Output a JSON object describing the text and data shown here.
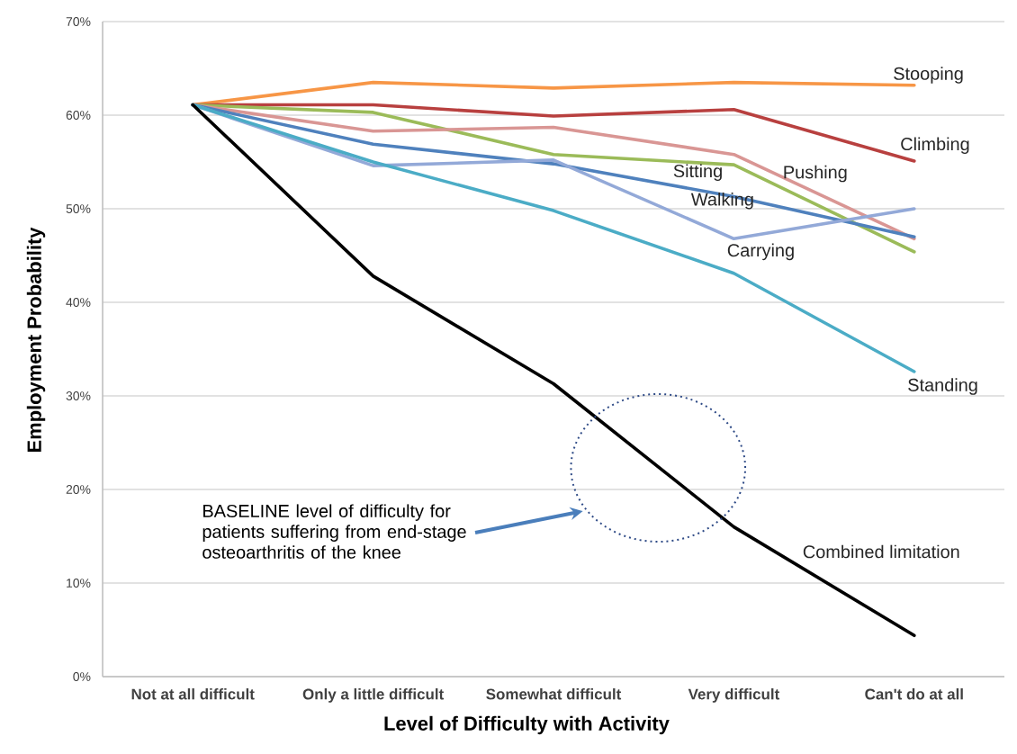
{
  "chart_data": {
    "type": "line",
    "xlabel": "Level of Difficulty with Activity",
    "ylabel": "Employment Probability",
    "categories": [
      "Not at all difficult",
      "Only a little difficult",
      "Somewhat difficult",
      "Very difficult",
      "Can't do at all"
    ],
    "series": [
      {
        "name": "Stooping",
        "color": "#f79646",
        "values": [
          61.1,
          63.5,
          62.9,
          63.5,
          63.2
        ]
      },
      {
        "name": "Climbing",
        "color": "#b8403f",
        "values": [
          61.1,
          61.1,
          59.9,
          60.6,
          55.1
        ]
      },
      {
        "name": "Sitting",
        "color": "#9bbb59",
        "values": [
          61.1,
          60.3,
          55.8,
          54.7,
          45.4
        ]
      },
      {
        "name": "Pushing",
        "color": "#d99694",
        "values": [
          61.1,
          58.3,
          58.7,
          55.8,
          46.8
        ]
      },
      {
        "name": "Walking",
        "color": "#4f81bd",
        "values": [
          61.1,
          56.9,
          54.8,
          51.3,
          47.0
        ]
      },
      {
        "name": "Carrying",
        "color": "#93a9d8",
        "values": [
          61.1,
          54.6,
          55.2,
          46.8,
          50.0
        ]
      },
      {
        "name": "Standing",
        "color": "#4bacc6",
        "values": [
          61.1,
          55.0,
          49.8,
          43.1,
          32.6
        ]
      },
      {
        "name": "Combined limitation",
        "color": "#000000",
        "values": [
          61.1,
          42.8,
          31.3,
          16.0,
          4.4
        ]
      }
    ],
    "ylim": [
      0,
      70
    ],
    "yticks": [
      {
        "value": 0,
        "label": "0%"
      },
      {
        "value": 10,
        "label": "10%"
      },
      {
        "value": 20,
        "label": "20%"
      },
      {
        "value": 30,
        "label": "30%"
      },
      {
        "value": 40,
        "label": "40%"
      },
      {
        "value": 50,
        "label": "50%"
      },
      {
        "value": 60,
        "label": "60%"
      },
      {
        "value": 70,
        "label": "70%"
      }
    ],
    "grid": "y",
    "annotations": [
      "BASELINE level of difficulty for patients suffering from end-stage osteoarthritis of the knee"
    ]
  }
}
